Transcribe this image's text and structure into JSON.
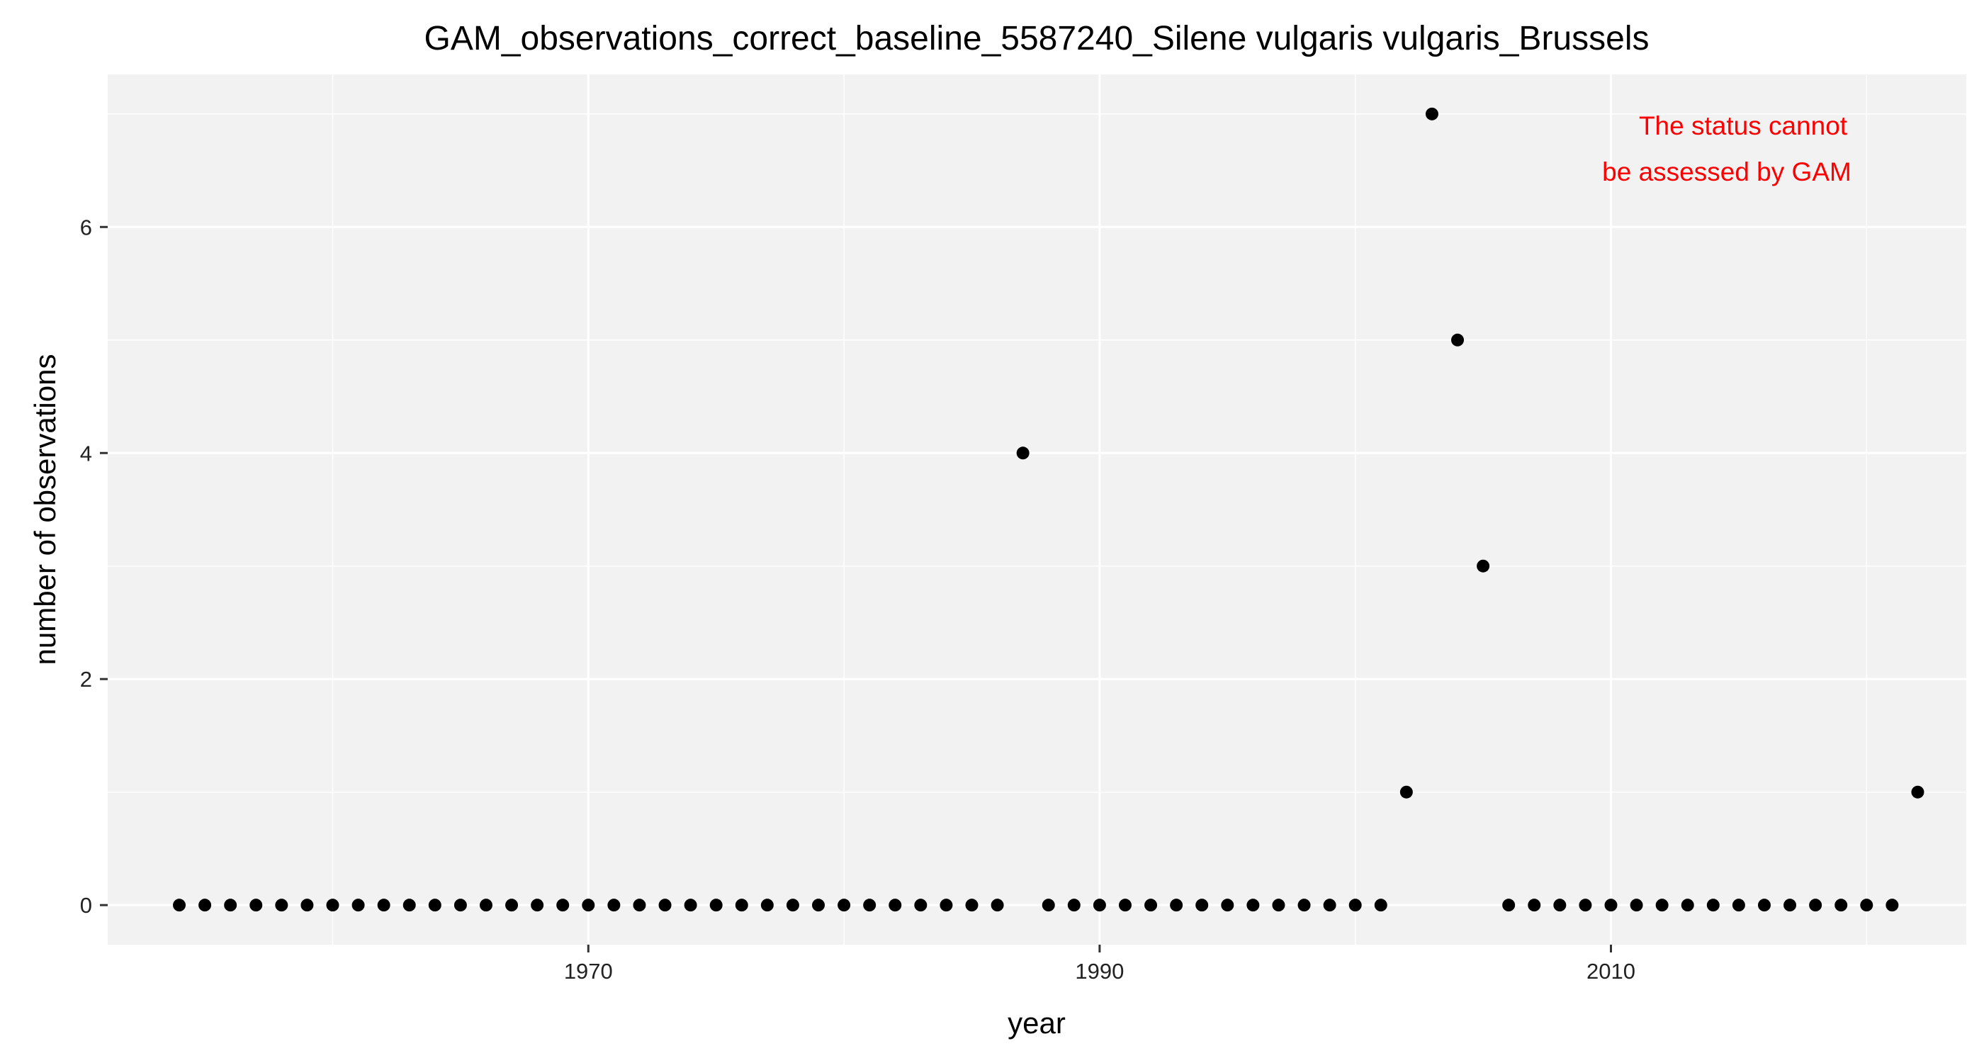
{
  "chart_data": {
    "type": "scatter",
    "title": "GAM_observations_correct_baseline_5587240_Silene vulgaris vulgaris_Brussels",
    "xlabel": "year",
    "ylabel": "number of observations",
    "xlim": [
      1951.2,
      2023.9
    ],
    "ylim": [
      -0.35,
      7.35
    ],
    "x_ticks": [
      1970,
      1990,
      2010
    ],
    "x_tick_labels": [
      "1970",
      "1990",
      "2010"
    ],
    "y_ticks": [
      0,
      2,
      4,
      6
    ],
    "y_tick_labels": [
      "0",
      "2",
      "4",
      "6"
    ],
    "grid": true,
    "annotation": [
      "The status cannot",
      "be assessed by GAM"
    ],
    "colors": {
      "panel": "#f2f2f2",
      "grid": "#ffffff",
      "point": "#000000",
      "annotation": "#ff0000"
    },
    "points": [
      {
        "x": 1954,
        "y": 0
      },
      {
        "x": 1955,
        "y": 0
      },
      {
        "x": 1956,
        "y": 0
      },
      {
        "x": 1957,
        "y": 0
      },
      {
        "x": 1958,
        "y": 0
      },
      {
        "x": 1959,
        "y": 0
      },
      {
        "x": 1960,
        "y": 0
      },
      {
        "x": 1961,
        "y": 0
      },
      {
        "x": 1962,
        "y": 0
      },
      {
        "x": 1963,
        "y": 0
      },
      {
        "x": 1964,
        "y": 0
      },
      {
        "x": 1965,
        "y": 0
      },
      {
        "x": 1966,
        "y": 0
      },
      {
        "x": 1967,
        "y": 0
      },
      {
        "x": 1968,
        "y": 0
      },
      {
        "x": 1969,
        "y": 0
      },
      {
        "x": 1970,
        "y": 0
      },
      {
        "x": 1971,
        "y": 0
      },
      {
        "x": 1972,
        "y": 0
      },
      {
        "x": 1973,
        "y": 0
      },
      {
        "x": 1974,
        "y": 0
      },
      {
        "x": 1975,
        "y": 0
      },
      {
        "x": 1976,
        "y": 0
      },
      {
        "x": 1977,
        "y": 0
      },
      {
        "x": 1978,
        "y": 0
      },
      {
        "x": 1979,
        "y": 0
      },
      {
        "x": 1980,
        "y": 0
      },
      {
        "x": 1981,
        "y": 0
      },
      {
        "x": 1982,
        "y": 0
      },
      {
        "x": 1983,
        "y": 0
      },
      {
        "x": 1984,
        "y": 0
      },
      {
        "x": 1985,
        "y": 0
      },
      {
        "x": 1986,
        "y": 0
      },
      {
        "x": 1987,
        "y": 4
      },
      {
        "x": 1988,
        "y": 0
      },
      {
        "x": 1989,
        "y": 0
      },
      {
        "x": 1990,
        "y": 0
      },
      {
        "x": 1991,
        "y": 0
      },
      {
        "x": 1992,
        "y": 0
      },
      {
        "x": 1993,
        "y": 0
      },
      {
        "x": 1994,
        "y": 0
      },
      {
        "x": 1995,
        "y": 0
      },
      {
        "x": 1996,
        "y": 0
      },
      {
        "x": 1997,
        "y": 0
      },
      {
        "x": 1998,
        "y": 0
      },
      {
        "x": 1999,
        "y": 0
      },
      {
        "x": 2000,
        "y": 0
      },
      {
        "x": 2001,
        "y": 0
      },
      {
        "x": 2002,
        "y": 1
      },
      {
        "x": 2003,
        "y": 7
      },
      {
        "x": 2004,
        "y": 5
      },
      {
        "x": 2005,
        "y": 3
      },
      {
        "x": 2006,
        "y": 0
      },
      {
        "x": 2007,
        "y": 0
      },
      {
        "x": 2008,
        "y": 0
      },
      {
        "x": 2009,
        "y": 0
      },
      {
        "x": 2010,
        "y": 0
      },
      {
        "x": 2011,
        "y": 0
      },
      {
        "x": 2012,
        "y": 0
      },
      {
        "x": 2013,
        "y": 0
      },
      {
        "x": 2014,
        "y": 0
      },
      {
        "x": 2015,
        "y": 0
      },
      {
        "x": 2016,
        "y": 0
      },
      {
        "x": 2017,
        "y": 0
      },
      {
        "x": 2018,
        "y": 0
      },
      {
        "x": 2019,
        "y": 0
      },
      {
        "x": 2020,
        "y": 0
      },
      {
        "x": 2021,
        "y": 0
      },
      {
        "x": 2022,
        "y": 1
      }
    ]
  }
}
